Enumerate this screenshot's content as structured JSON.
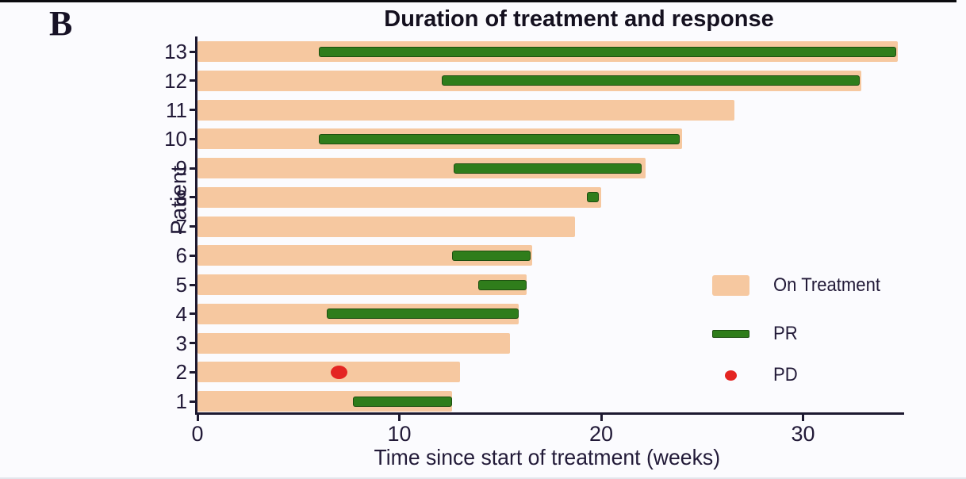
{
  "panel_label": "B",
  "chart_data": {
    "type": "bar",
    "subtype": "swimmer-plot",
    "title": "Duration of treatment and response",
    "xlabel": "Time since start of treatment (weeks)",
    "ylabel": "Patient",
    "xlim": [
      0,
      35
    ],
    "x_ticks": [
      0,
      10,
      20,
      30
    ],
    "grid": false,
    "legend_position": "right-middle",
    "legend": [
      {
        "label": "On Treatment",
        "marker": "bar",
        "color": "#f6c8a0"
      },
      {
        "label": "PR",
        "marker": "bar",
        "color": "#2f7d1b"
      },
      {
        "label": "PD",
        "marker": "dot",
        "color": "#e42522"
      }
    ],
    "patients": [
      {
        "id": 13,
        "on_treatment_weeks": 34.7,
        "pr": [
          6.0,
          34.6
        ],
        "pd": null
      },
      {
        "id": 12,
        "on_treatment_weeks": 32.9,
        "pr": [
          12.1,
          32.8
        ],
        "pd": null
      },
      {
        "id": 11,
        "on_treatment_weeks": 26.6,
        "pr": null,
        "pd": null
      },
      {
        "id": 10,
        "on_treatment_weeks": 24.0,
        "pr": [
          6.0,
          23.9
        ],
        "pd": null
      },
      {
        "id": 9,
        "on_treatment_weeks": 22.2,
        "pr": [
          12.7,
          22.0
        ],
        "pd": null
      },
      {
        "id": 8,
        "on_treatment_weeks": 20.0,
        "pr": [
          19.3,
          19.9
        ],
        "pd": null
      },
      {
        "id": 7,
        "on_treatment_weeks": 18.7,
        "pr": null,
        "pd": null
      },
      {
        "id": 6,
        "on_treatment_weeks": 16.6,
        "pr": [
          12.6,
          16.5
        ],
        "pd": null
      },
      {
        "id": 5,
        "on_treatment_weeks": 16.3,
        "pr": [
          13.9,
          16.3
        ],
        "pd": null
      },
      {
        "id": 4,
        "on_treatment_weeks": 15.9,
        "pr": [
          6.4,
          15.9
        ],
        "pd": null
      },
      {
        "id": 3,
        "on_treatment_weeks": 15.5,
        "pr": null,
        "pd": null
      },
      {
        "id": 2,
        "on_treatment_weeks": 13.0,
        "pr": null,
        "pd": 7.0
      },
      {
        "id": 1,
        "on_treatment_weeks": 12.6,
        "pr": [
          7.7,
          12.6
        ],
        "pd": null
      }
    ],
    "colors": {
      "on_treatment": "#f6c8a0",
      "pr": "#2f7d1b",
      "pd": "#e42522",
      "axis": "#1d1930",
      "text": "#221a38",
      "background": "#fbfbfe"
    }
  }
}
